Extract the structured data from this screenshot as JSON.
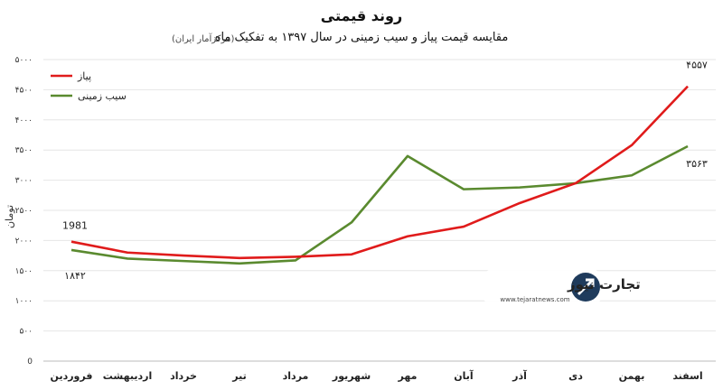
{
  "title": "روند قیمتی",
  "subtitle": "مقایسه قیمت پیاز و سیب زمینی در سال ۱۳۹۷ به تفکیک ماه",
  "source": "(مرکزآمار ایران)",
  "logo": {
    "name": "تجارت نیوز",
    "url": "www.tejaratnews.com"
  },
  "chart_data": {
    "type": "line",
    "title": "روند قیمتی",
    "subtitle": "مقایسه قیمت پیاز و سیب زمینی در سال ۱۳۹۷ به تفکیک ماه",
    "ylabel": "تومان",
    "xlabel": "",
    "ylim": [
      0,
      5000
    ],
    "y_ticks": [
      0,
      500,
      1000,
      1500,
      2000,
      2500,
      3000,
      3500,
      4000,
      4500,
      5000
    ],
    "y_tick_labels": [
      "0",
      "۵۰۰",
      "۱۰۰۰",
      "۱۵۰۰",
      "۲۰۰۰",
      "۲۵۰۰",
      "۳۰۰۰",
      "۳۵۰۰",
      "۴۰۰۰",
      "۴۵۰۰",
      "۵۰۰۰"
    ],
    "categories": [
      "فروردین",
      "اردیبهشت",
      "خرداد",
      "تیر",
      "مرداد",
      "شهریور",
      "مهر",
      "آبان",
      "آذر",
      "دی",
      "بهمن",
      "اسفند"
    ],
    "grid": true,
    "legend": "top-left",
    "series": [
      {
        "name": "پیاز",
        "color": "#e01b1b",
        "values": [
          1981,
          1800,
          1750,
          1710,
          1730,
          1770,
          2070,
          2230,
          2620,
          2950,
          3580,
          4557
        ]
      },
      {
        "name": "سیب زمینی",
        "color": "#5a8a2f",
        "values": [
          1842,
          1700,
          1660,
          1620,
          1670,
          2300,
          3400,
          2850,
          2880,
          2950,
          3080,
          3563
        ]
      }
    ],
    "data_labels": [
      {
        "series": 0,
        "index": 0,
        "text": "1981"
      },
      {
        "series": 1,
        "index": 0,
        "text": "۱۸۴۲"
      },
      {
        "series": 0,
        "index": 11,
        "text": "۴۵۵۷"
      },
      {
        "series": 1,
        "index": 11,
        "text": "۳۵۶۳"
      }
    ]
  }
}
